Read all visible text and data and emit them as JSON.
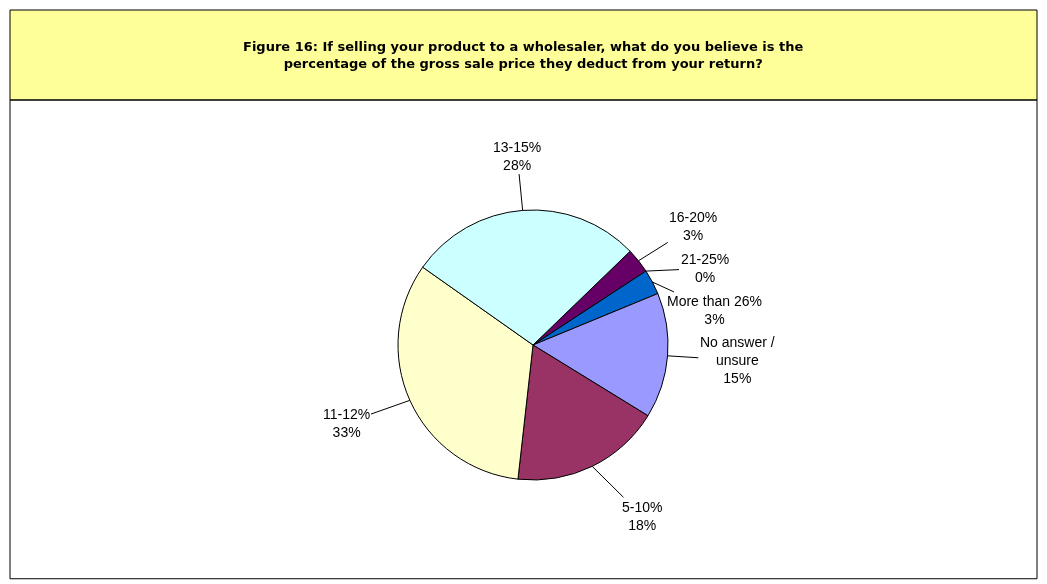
{
  "chart_data": {
    "type": "pie",
    "title": "Figure 16: If selling your product to a wholesaler, what do you believe is the percentage of the gross sale price they deduct from your return?",
    "categories": [
      "16-20%",
      "21-25%",
      "More than 26%",
      "No answer / unsure",
      "5-10%",
      "11-12%",
      "13-15%"
    ],
    "values": [
      3,
      0,
      3,
      15,
      18,
      33,
      28
    ],
    "value_labels": [
      "3%",
      "0%",
      "3%",
      "15%",
      "18%",
      "33%",
      "28%"
    ],
    "colors": [
      "#660066",
      "#ccffcc",
      "#0066cc",
      "#9999ff",
      "#993366",
      "#ffffcc",
      "#ccffff"
    ],
    "legend": false
  }
}
